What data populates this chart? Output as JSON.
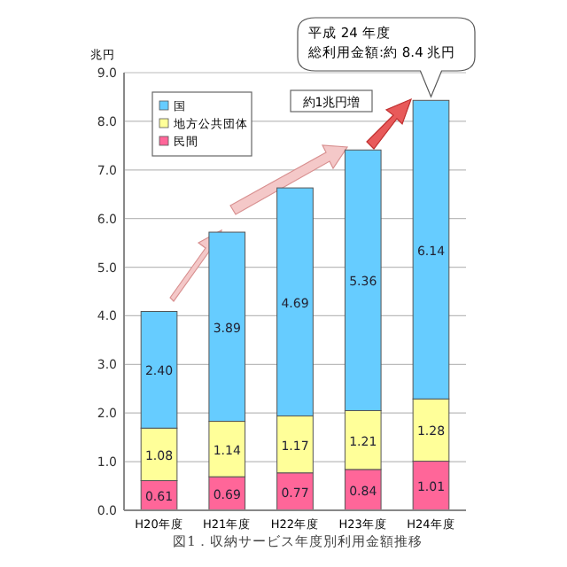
{
  "chart_data": {
    "type": "bar",
    "stacked": true,
    "ylabel": "兆円",
    "categories": [
      "H20年度",
      "H21年度",
      "H22年度",
      "H23年度",
      "H24年度"
    ],
    "series": [
      {
        "name": "民間",
        "color": "#ff6699",
        "values": [
          0.61,
          0.69,
          0.77,
          0.84,
          1.01
        ],
        "value_labels": [
          "0.61",
          "0.69",
          "0.77",
          "0.84",
          "1.01"
        ]
      },
      {
        "name": "地方公共団体",
        "color": "#ffff99",
        "values": [
          1.08,
          1.14,
          1.17,
          1.21,
          1.28
        ],
        "value_labels": [
          "1.08",
          "1.14",
          "1.17",
          "1.21",
          "1.28"
        ]
      },
      {
        "name": "国",
        "color": "#66ccff",
        "values": [
          2.4,
          3.89,
          4.69,
          5.36,
          6.14
        ],
        "value_labels": [
          "2.40",
          "3.89",
          "4.69",
          "5.36",
          "6.14"
        ]
      }
    ],
    "ylim": [
      0,
      9
    ],
    "yticks": [
      {
        "value": 0,
        "label": "0.0"
      },
      {
        "value": 1,
        "label": "1.0"
      },
      {
        "value": 2,
        "label": "2.0"
      },
      {
        "value": 3,
        "label": "3.0"
      },
      {
        "value": 4,
        "label": "4.0"
      },
      {
        "value": 5,
        "label": "5.0"
      },
      {
        "value": 6,
        "label": "6.0"
      },
      {
        "value": 7,
        "label": "7.0"
      },
      {
        "value": 8,
        "label": "8.0"
      },
      {
        "value": 9,
        "label": "9.0"
      }
    ],
    "grid": "y",
    "legend": "top left",
    "annotations": [
      "平成 24 年度",
      "総利用金額:約 8.4 兆円",
      "約1兆円増",
      "図1．収納サービス年度別利用金額推移"
    ]
  }
}
